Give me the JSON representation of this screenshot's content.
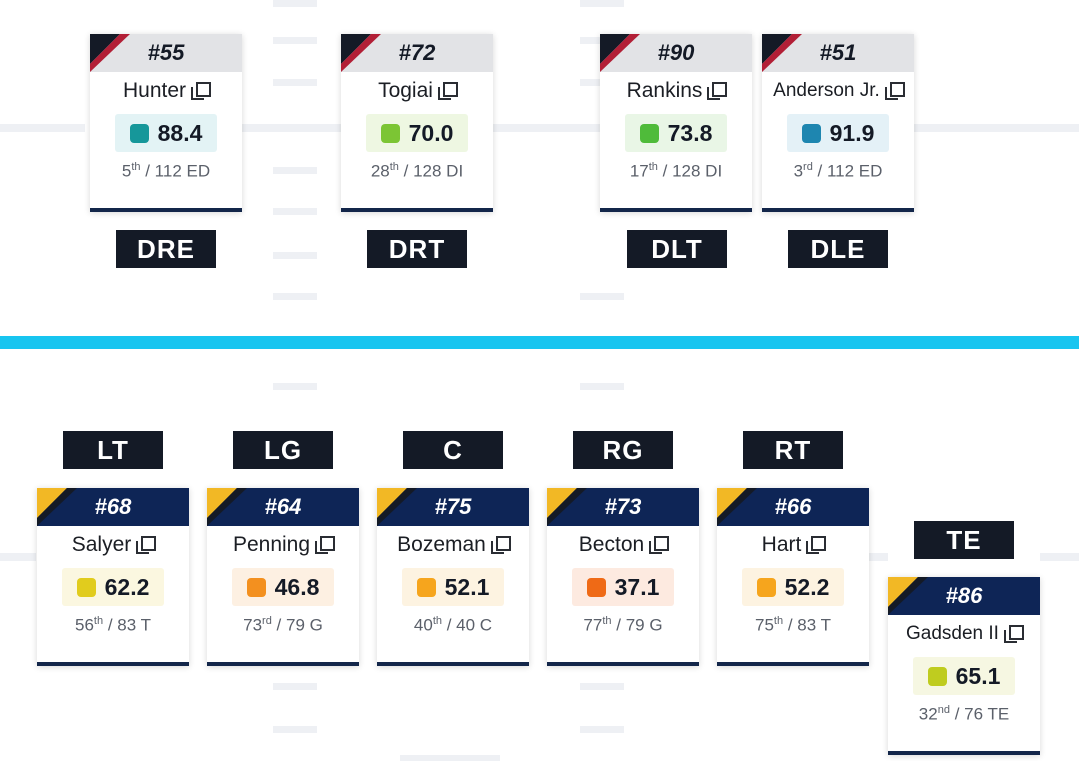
{
  "defense": {
    "cards": [
      {
        "id": "hunter",
        "number": "#55",
        "name": "Hunter",
        "grade": "88.4",
        "rank": "5",
        "suffix": "th",
        "of": " / 112 ED",
        "color": "#16979a",
        "bg": "#e3f3f5"
      },
      {
        "id": "togiai",
        "number": "#72",
        "name": "Togiai",
        "grade": "70.0",
        "rank": "28",
        "suffix": "th",
        "of": " / 128 DI",
        "color": "#7cc534",
        "bg": "#eef7e2"
      },
      {
        "id": "rankins",
        "number": "#90",
        "name": "Rankins",
        "grade": "73.8",
        "rank": "17",
        "suffix": "th",
        "of": " / 128 DI",
        "color": "#4fbb3a",
        "bg": "#e9f6e6"
      },
      {
        "id": "anderson",
        "number": "#51",
        "name": "Anderson Jr.",
        "grade": "91.9",
        "rank": "3",
        "suffix": "rd",
        "of": " / 112 ED",
        "color": "#1e86b0",
        "bg": "#e4f1f7"
      }
    ],
    "positions": [
      "DRE",
      "DRT",
      "DLT",
      "DLE"
    ]
  },
  "offense": {
    "positions": [
      "LT",
      "LG",
      "C",
      "RG",
      "RT",
      "TE"
    ],
    "cards": [
      {
        "id": "salyer",
        "number": "#68",
        "name": "Salyer",
        "grade": "62.2",
        "rank": "56",
        "suffix": "th",
        "of": " / 83 T",
        "color": "#e1cc1d",
        "bg": "#fbf7e0"
      },
      {
        "id": "penning",
        "number": "#64",
        "name": "Penning",
        "grade": "46.8",
        "rank": "73",
        "suffix": "rd",
        "of": " / 79 G",
        "color": "#f3901f",
        "bg": "#fdf0e2"
      },
      {
        "id": "bozeman",
        "number": "#75",
        "name": "Bozeman",
        "grade": "52.1",
        "rank": "40",
        "suffix": "th",
        "of": " / 40 C",
        "color": "#f6a51d",
        "bg": "#fdf3e1"
      },
      {
        "id": "becton",
        "number": "#73",
        "name": "Becton",
        "grade": "37.1",
        "rank": "77",
        "suffix": "th",
        "of": " / 79 G",
        "color": "#ef6a16",
        "bg": "#fdeae0"
      },
      {
        "id": "hart",
        "number": "#66",
        "name": "Hart",
        "grade": "52.2",
        "rank": "75",
        "suffix": "th",
        "of": " / 83 T",
        "color": "#f6a51d",
        "bg": "#fdf3e1"
      },
      {
        "id": "gadsden",
        "number": "#86",
        "name": "Gadsden II",
        "grade": "65.1",
        "rank": "32",
        "suffix": "nd",
        "of": " / 76 TE",
        "color": "#bfcc1f",
        "bg": "#f6f7e2"
      }
    ]
  },
  "colors": {
    "line_of_scrimmage": "#18c5f0",
    "defense_stripe": "#b21f36",
    "offense_stripe": "#f2b825",
    "card_header_dark": "#0e2556"
  }
}
